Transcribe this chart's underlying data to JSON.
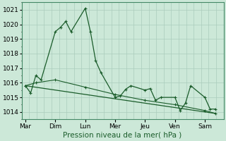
{
  "xlabel": "Pression niveau de la mer( hPa )",
  "background_color": "#cce8d8",
  "grid_color": "#aaccbc",
  "line_color": "#1a5c2a",
  "ylim": [
    1013.5,
    1021.5
  ],
  "yticks": [
    1014,
    1015,
    1016,
    1017,
    1018,
    1019,
    1020,
    1021
  ],
  "day_labels": [
    "Mar",
    "Dim",
    "Lun",
    "Mer",
    "Jeu",
    "Ven",
    "Sam"
  ],
  "day_positions": [
    0,
    40,
    80,
    120,
    160,
    200,
    240
  ],
  "xlim": [
    -5,
    265
  ],
  "series1_x": [
    0,
    7,
    14,
    21,
    40,
    47,
    54,
    61,
    80,
    87,
    94,
    101,
    120,
    127,
    134,
    141,
    160,
    167,
    174,
    181,
    200,
    207,
    214,
    221,
    240,
    247,
    254
  ],
  "series1_y": [
    1015.8,
    1015.3,
    1016.5,
    1016.2,
    1019.5,
    1019.8,
    1020.2,
    1019.5,
    1021.1,
    1019.5,
    1017.5,
    1016.7,
    1015.0,
    1015.1,
    1015.55,
    1015.8,
    1015.5,
    1015.6,
    1014.8,
    1015.0,
    1015.0,
    1014.1,
    1014.6,
    1015.8,
    1015.0,
    1014.2,
    1014.2
  ],
  "series2_x": [
    0,
    14,
    40,
    80,
    120,
    160,
    200,
    240,
    254
  ],
  "series2_y": [
    1015.8,
    1016.0,
    1016.2,
    1015.7,
    1015.2,
    1014.8,
    1014.5,
    1014.1,
    1013.9
  ],
  "trend_x": [
    0,
    254
  ],
  "trend_y": [
    1015.8,
    1013.9
  ],
  "xlabel_fontsize": 7.5,
  "tick_fontsize": 6.5
}
